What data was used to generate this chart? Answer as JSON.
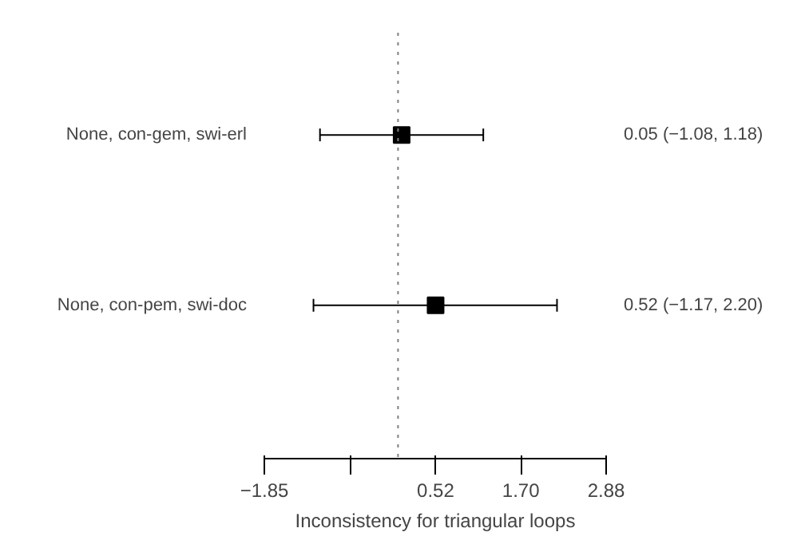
{
  "chart_data": {
    "type": "scatter",
    "orientation": "horizontal",
    "xlabel": "Inconsistency for triangular loops",
    "categories": [
      "None, con-gem, swi-erl",
      "None, con-pem, swi-doc"
    ],
    "values": [
      0.05,
      0.52
    ],
    "errors": [
      [
        -1.08,
        1.18
      ],
      [
        -1.17,
        2.2
      ]
    ],
    "value_labels": [
      "0.05 (−1.08,  1.18)",
      "0.52 (−1.17,  2.20)"
    ],
    "color": "#000000",
    "marker": "square",
    "xlim": [
      -1.85,
      2.88
    ],
    "xticks": [
      -1.85,
      {
        "value": -0.665,
        "label": null
      },
      0.52,
      {
        "value": 1.7,
        "label": "1.70"
      },
      2.88
    ],
    "ref_lines": [
      {
        "axis": "x",
        "value": 0,
        "line_style": "dotted",
        "color": "#808080"
      }
    ],
    "grid": false
  }
}
